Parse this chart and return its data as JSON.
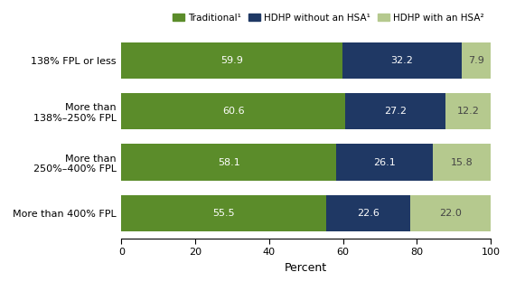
{
  "categories": [
    "138% FPL or less",
    "More than\n138%–250% FPL",
    "More than\n250%–400% FPL",
    "More than 400% FPL"
  ],
  "traditional": [
    59.9,
    60.6,
    58.1,
    55.5
  ],
  "hdhp_no_hsa": [
    32.2,
    27.2,
    26.1,
    22.6
  ],
  "hdhp_hsa": [
    7.9,
    12.2,
    15.8,
    22.0
  ],
  "color_traditional": "#5b8c2a",
  "color_hdhp_no_hsa": "#1f3864",
  "color_hdhp_hsa": "#b5c98e",
  "legend_labels": [
    "Traditional¹",
    "HDHP without an HSA¹",
    "HDHP with an HSA²"
  ],
  "xlabel": "Percent",
  "xlim": [
    0,
    100
  ],
  "xticks": [
    0,
    20,
    40,
    60,
    80,
    100
  ],
  "bar_height": 0.72,
  "label_fontsize": 8.0,
  "tick_fontsize": 8.0,
  "legend_fontsize": 7.5,
  "xlabel_fontsize": 9.0,
  "background_color": "#ffffff"
}
